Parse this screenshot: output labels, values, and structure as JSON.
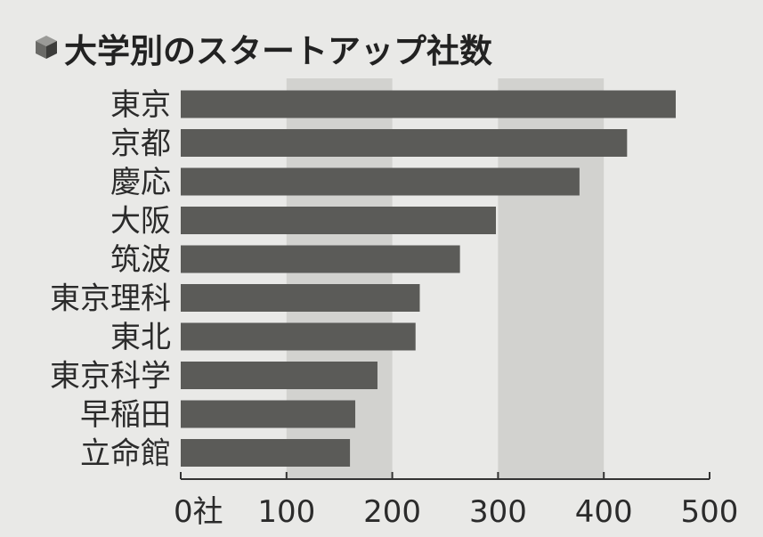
{
  "title": "大学別のスタートアップ社数",
  "title_icon": "cube-icon",
  "colors": {
    "background": "#e9e9e7",
    "bar": "#5b5b58",
    "band": "#d2d2cf",
    "text": "#2b2b2b",
    "axis": "#333333"
  },
  "chart_data": {
    "type": "bar",
    "orientation": "horizontal",
    "categories": [
      "東京",
      "京都",
      "慶応",
      "大阪",
      "筑波",
      "東京理科",
      "東北",
      "東京科学",
      "早稲田",
      "立命館"
    ],
    "values": [
      468,
      422,
      377,
      298,
      264,
      226,
      222,
      186,
      165,
      160
    ],
    "xlim": [
      0,
      500
    ],
    "xticks": [
      0,
      100,
      200,
      300,
      400,
      500
    ],
    "xtick_labels": [
      "0社",
      "100",
      "200",
      "300",
      "400",
      "500"
    ],
    "grid": "alternating vertical bands",
    "legend": "none"
  }
}
